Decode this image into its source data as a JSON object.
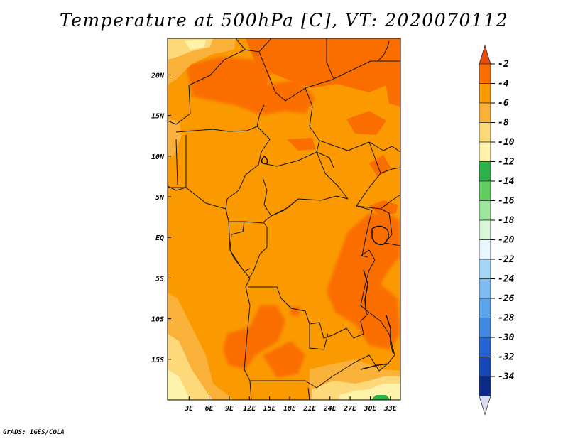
{
  "title": "Temperature at 500hPa [C], VT: 2020070112",
  "credit": "GrADS: IGES/COLA",
  "chart_data": {
    "type": "heatmap",
    "variable": "Temperature at 500hPa",
    "units": "C",
    "valid_time": "2020070112",
    "x_axis": {
      "ticks": [
        3,
        6,
        9,
        12,
        15,
        18,
        21,
        24,
        27,
        30,
        33
      ],
      "tick_labels": [
        "3E",
        "6E",
        "9E",
        "12E",
        "15E",
        "18E",
        "21E",
        "24E",
        "27E",
        "30E",
        "33E"
      ],
      "range": [
        -0.2,
        34.5
      ]
    },
    "y_axis": {
      "ticks": [
        20,
        15,
        10,
        5,
        0,
        -5,
        -10,
        -15
      ],
      "tick_labels": [
        "20N",
        "15N",
        "10N",
        "5N",
        "EQ",
        "5S",
        "10S",
        "15S"
      ],
      "range": [
        -20,
        24.5
      ]
    },
    "colorbar": {
      "orientation": "vertical",
      "placement": "right",
      "levels": [
        "-2",
        "-4",
        "-6",
        "-8",
        "-10",
        "-12",
        "-14",
        "-16",
        "-18",
        "-20",
        "-22",
        "-24",
        "-26",
        "-28",
        "-30",
        "-32",
        "-34"
      ],
      "colors": [
        "#e64a0f",
        "#fa6e00",
        "#fa9a00",
        "#f9b13a",
        "#fdd97a",
        "#fff3ac",
        "#2db24a",
        "#5fcd5f",
        "#9ee69e",
        "#d7f7d7",
        "#e8f7ff",
        "#a6d6f5",
        "#7fbcf2",
        "#5aa4ec",
        "#3f88e3",
        "#2363d5",
        "#1547b8",
        "#0c2a87",
        "#dcdcf5"
      ]
    },
    "dominant_range": "-4 to -6",
    "warmest_areas": "northern Sahara around 20-24N, 20-28E (-2 to -4)",
    "coldest_areas": "far southeast near 15-20S, 30-33E (-12 to -14)"
  }
}
